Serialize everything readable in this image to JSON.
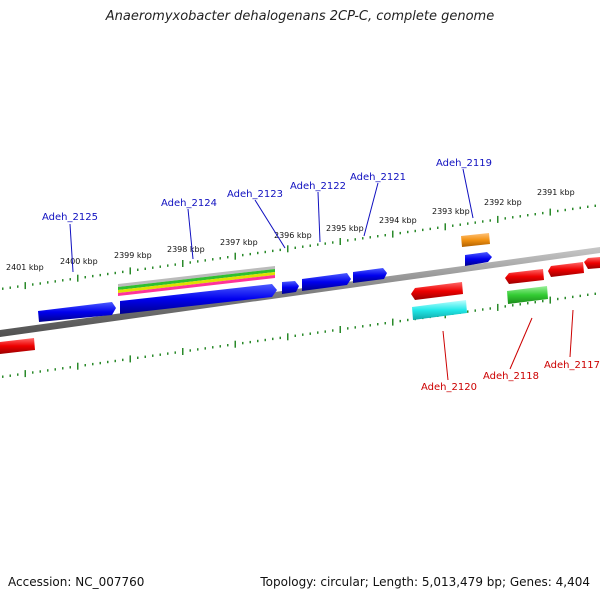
{
  "title": "Anaeromyxobacter dehalogenans 2CP-C, complete genome",
  "footer": {
    "accession": "Accession: NC_007760",
    "summary": "Topology: circular; Length: 5,013,479 bp; Genes: 4,404"
  },
  "ruler_labels": [
    "2401 kbp",
    "2400 kbp",
    "2399 kbp",
    "2398 kbp",
    "2397 kbp",
    "2396 kbp",
    "2395 kbp",
    "2394 kbp",
    "2393 kbp",
    "2392 kbp",
    "2391 kbp"
  ],
  "genes_top": [
    "Adeh_2125",
    "Adeh_2124",
    "Adeh_2123",
    "Adeh_2122",
    "Adeh_2121",
    "Adeh_2119"
  ],
  "genes_bottom": [
    "Adeh_2120",
    "Adeh_2118",
    "Adeh_2117"
  ],
  "colors": {
    "forward_gene": "#0000ee",
    "reverse_gene": "#ee0000",
    "backbone": "#808080",
    "ticks": "#2a8a2a",
    "forward_label": "#1010c0",
    "reverse_label": "#cc0000",
    "orange_feature": "#f29111",
    "cyan_feature": "#22e8e8",
    "green_feature": "#33cc33"
  }
}
